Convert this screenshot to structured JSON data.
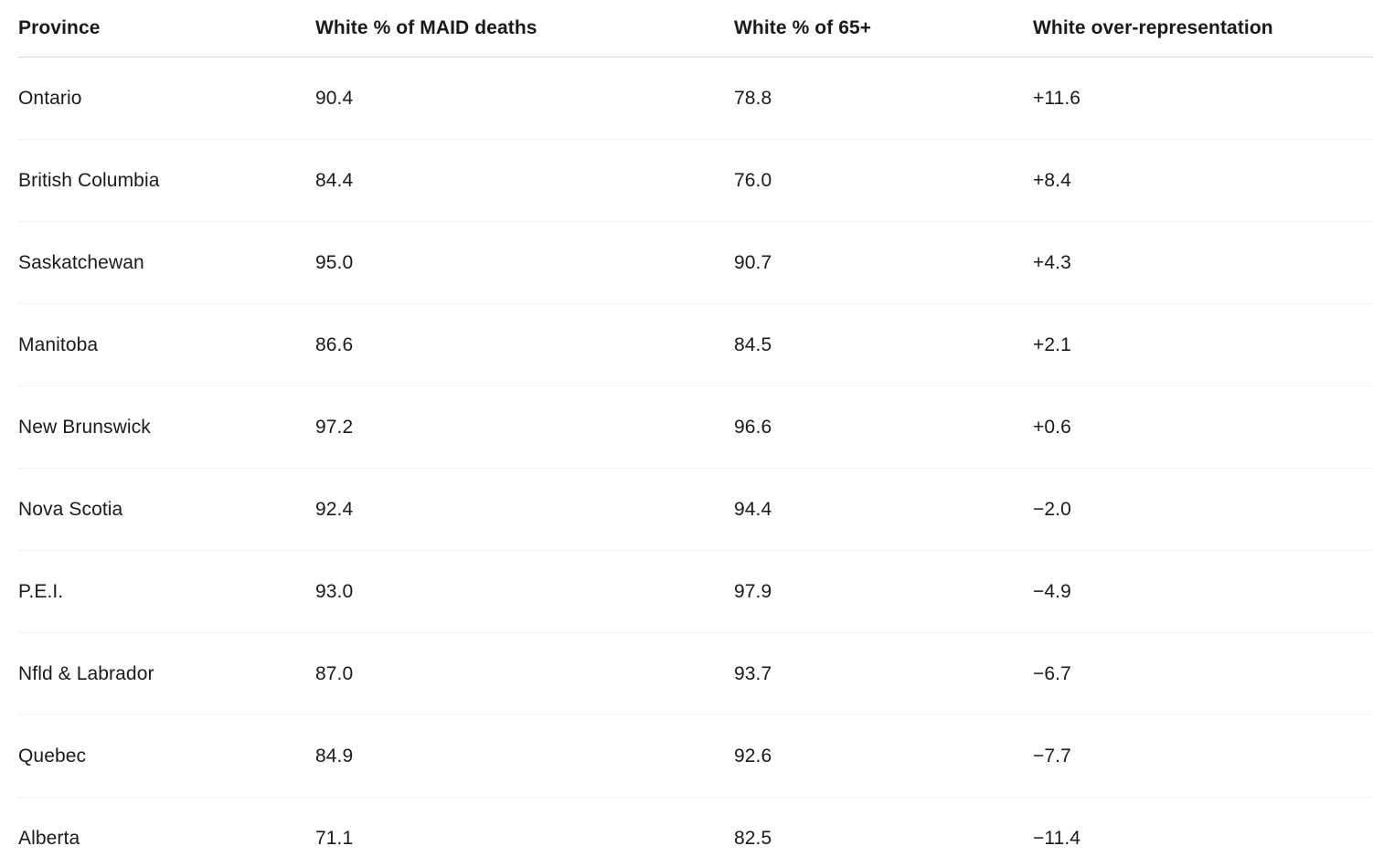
{
  "table": {
    "headers": [
      {
        "label": "Province"
      },
      {
        "label": "White % of MAID deaths"
      },
      {
        "label": "White % of 65+"
      },
      {
        "label": "White over-representation"
      }
    ],
    "rows": [
      {
        "province": "Ontario",
        "maid_pct": "90.4",
        "senior_pct": "78.8",
        "over_rep": "+11.6"
      },
      {
        "province": "British Columbia",
        "maid_pct": "84.4",
        "senior_pct": "76.0",
        "over_rep": "+8.4"
      },
      {
        "province": "Saskatchewan",
        "maid_pct": "95.0",
        "senior_pct": "90.7",
        "over_rep": "+4.3"
      },
      {
        "province": "Manitoba",
        "maid_pct": "86.6",
        "senior_pct": "84.5",
        "over_rep": "+2.1"
      },
      {
        "province": "New Brunswick",
        "maid_pct": "97.2",
        "senior_pct": "96.6",
        "over_rep": "+0.6"
      },
      {
        "province": "Nova Scotia",
        "maid_pct": "92.4",
        "senior_pct": "94.4",
        "over_rep": "−2.0"
      },
      {
        "province": "P.E.I.",
        "maid_pct": "93.0",
        "senior_pct": "97.9",
        "over_rep": "−4.9"
      },
      {
        "province": "Nfld & Labrador",
        "maid_pct": "87.0",
        "senior_pct": "93.7",
        "over_rep": "−6.7"
      },
      {
        "province": "Quebec",
        "maid_pct": "84.9",
        "senior_pct": "92.6",
        "over_rep": "−7.7"
      },
      {
        "province": "Alberta",
        "maid_pct": "71.1",
        "senior_pct": "82.5",
        "over_rep": "−11.4"
      }
    ]
  },
  "colors": {
    "text": "#1a1a1a",
    "background": "#ffffff",
    "header_divider": "#d9d9d9",
    "row_divider": "#f0f0f0"
  },
  "chart_data": {
    "type": "table",
    "title": "",
    "columns": [
      "Province",
      "White % of MAID deaths",
      "White % of 65+",
      "White over-representation"
    ],
    "categories": [
      "Ontario",
      "British Columbia",
      "Saskatchewan",
      "Manitoba",
      "New Brunswick",
      "Nova Scotia",
      "P.E.I.",
      "Nfld & Labrador",
      "Quebec",
      "Alberta"
    ],
    "series": [
      {
        "name": "White % of MAID deaths",
        "values": [
          90.4,
          84.4,
          95.0,
          86.6,
          97.2,
          92.4,
          93.0,
          87.0,
          84.9,
          71.1
        ]
      },
      {
        "name": "White % of 65+",
        "values": [
          78.8,
          76.0,
          90.7,
          84.5,
          96.6,
          94.4,
          97.9,
          93.7,
          92.6,
          82.5
        ]
      },
      {
        "name": "White over-representation",
        "values": [
          11.6,
          8.4,
          4.3,
          2.1,
          0.6,
          -2.0,
          -4.9,
          -6.7,
          -7.7,
          -11.4
        ]
      }
    ]
  }
}
